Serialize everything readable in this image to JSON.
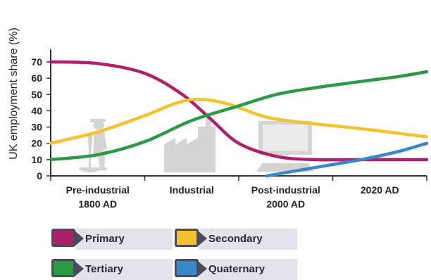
{
  "chart_data": {
    "type": "line",
    "ylabel": "UK employment share (%)",
    "ylim": [
      0,
      70
    ],
    "yticks": [
      0,
      10,
      20,
      30,
      40,
      50,
      60,
      70
    ],
    "categories": [
      "Pre-industrial\n1800 AD",
      "Industrial",
      "Post-industrial\n2000 AD",
      "2020 AD"
    ],
    "xlim": [
      0,
      4
    ],
    "series": [
      {
        "name": "Primary",
        "color": "#b0206a",
        "points": [
          [
            0,
            70
          ],
          [
            0.5,
            69
          ],
          [
            1,
            63
          ],
          [
            1.4,
            50
          ],
          [
            1.7,
            35
          ],
          [
            2,
            20
          ],
          [
            2.4,
            12
          ],
          [
            2.8,
            10
          ],
          [
            3.3,
            10
          ],
          [
            4,
            10
          ]
        ]
      },
      {
        "name": "Secondary",
        "color": "#f3c22e",
        "points": [
          [
            0,
            20
          ],
          [
            0.5,
            27
          ],
          [
            1,
            37
          ],
          [
            1.35,
            45
          ],
          [
            1.6,
            47
          ],
          [
            1.9,
            44
          ],
          [
            2.3,
            36
          ],
          [
            2.8,
            32
          ],
          [
            3.3,
            29
          ],
          [
            4,
            24
          ]
        ]
      },
      {
        "name": "Tertiary",
        "color": "#2a9a45",
        "points": [
          [
            0,
            10
          ],
          [
            0.5,
            13
          ],
          [
            1,
            21
          ],
          [
            1.5,
            34
          ],
          [
            2,
            43
          ],
          [
            2.4,
            50
          ],
          [
            2.8,
            54
          ],
          [
            3.3,
            58
          ],
          [
            3.7,
            61
          ],
          [
            4,
            64
          ]
        ]
      },
      {
        "name": "Quaternary",
        "color": "#3a88c8",
        "points": [
          [
            2.3,
            0
          ],
          [
            2.8,
            5
          ],
          [
            3.3,
            10
          ],
          [
            3.7,
            15
          ],
          [
            4,
            20
          ]
        ]
      }
    ]
  },
  "icons": [
    "worker-silhouette-icon",
    "factory-icon",
    "computer-icon"
  ]
}
